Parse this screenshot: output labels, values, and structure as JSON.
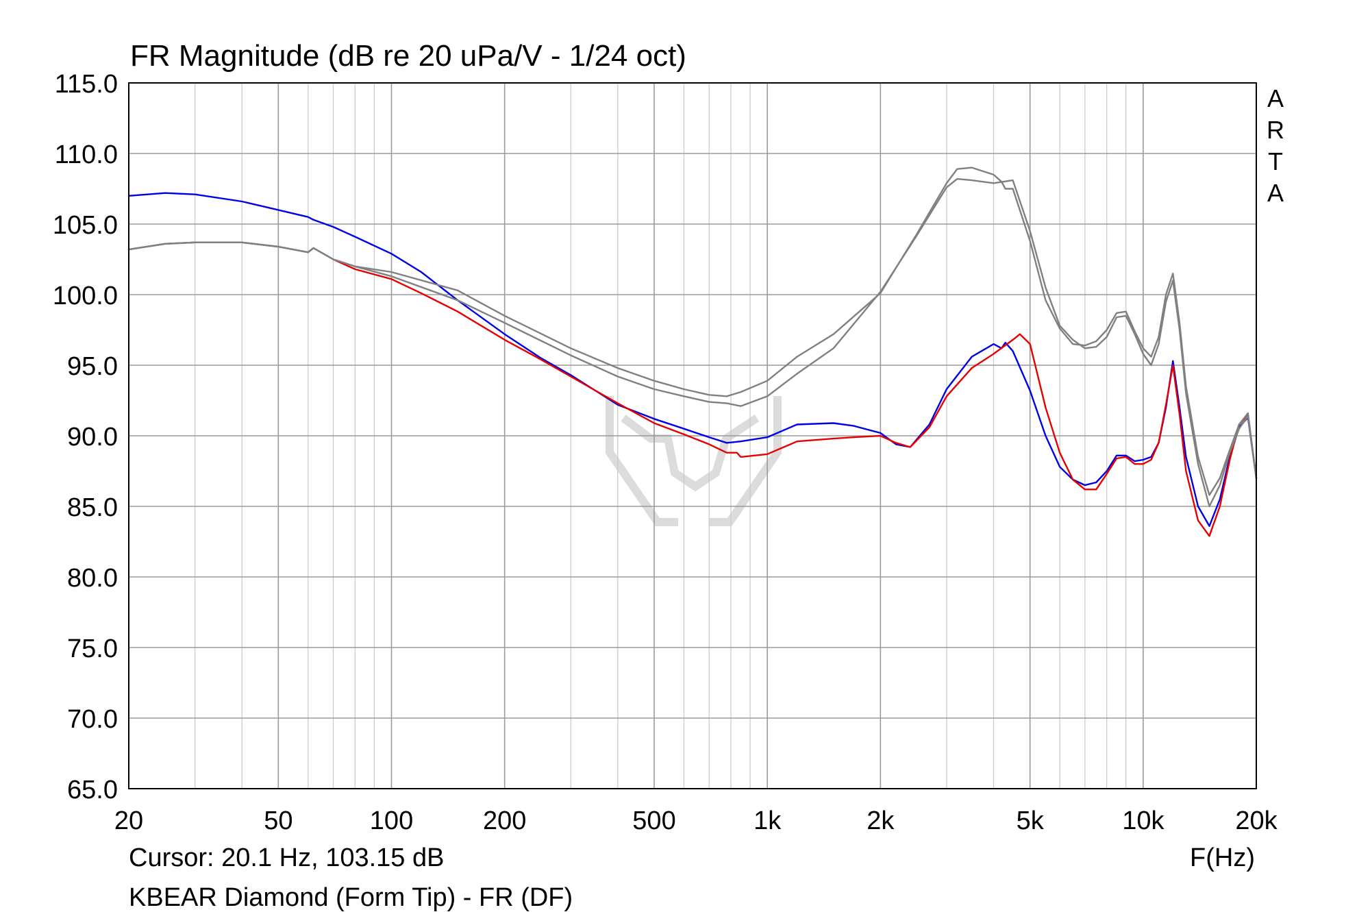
{
  "chart_data": {
    "type": "line",
    "title": "FR Magnitude (dB re 20 uPa/V - 1/24 oct)",
    "xlabel": "F(Hz)",
    "ylabel": "",
    "x_scale": "log",
    "xlim": [
      20,
      20000
    ],
    "ylim": [
      65,
      115
    ],
    "grid": true,
    "x_tick_values": [
      20,
      50,
      100,
      200,
      500,
      1000,
      2000,
      5000,
      10000,
      20000
    ],
    "x_tick_labels": [
      "20",
      "50",
      "100",
      "200",
      "500",
      "1k",
      "2k",
      "5k",
      "10k",
      "20k"
    ],
    "y_ticks": [
      "65.0",
      "70.0",
      "75.0",
      "80.0",
      "85.0",
      "90.0",
      "95.0",
      "100.0",
      "105.0",
      "110.0",
      "115.0"
    ],
    "brand_letters": [
      "A",
      "R",
      "T",
      "A"
    ],
    "cursor_text": "Cursor: 20.1 Hz, 103.15 dB",
    "caption": "KBEAR Diamond (Form Tip) - FR (DF)",
    "series": [
      {
        "color": "#0000e6",
        "x": [
          20,
          25,
          30,
          40,
          50,
          60,
          62,
          70,
          80,
          100,
          120,
          150,
          200,
          250,
          300,
          400,
          500,
          600,
          700,
          780,
          850,
          1000,
          1200,
          1500,
          1700,
          2000,
          2200,
          2400,
          2700,
          3000,
          3500,
          4000,
          4200,
          4300,
          4500,
          5000,
          5500,
          6000,
          6500,
          7000,
          7500,
          8000,
          8500,
          9000,
          9500,
          10000,
          10500,
          11000,
          11500,
          12000,
          12500,
          13000,
          14000,
          15000,
          16000,
          17000,
          18000,
          19000,
          20000
        ],
        "y": [
          107.0,
          107.2,
          107.1,
          106.6,
          106.0,
          105.5,
          105.3,
          104.8,
          104.1,
          102.9,
          101.6,
          99.6,
          97.2,
          95.5,
          94.3,
          92.2,
          91.2,
          90.5,
          89.9,
          89.5,
          89.6,
          89.9,
          90.8,
          90.9,
          90.7,
          90.2,
          89.4,
          89.2,
          90.8,
          93.3,
          95.6,
          96.5,
          96.2,
          96.6,
          96.0,
          93.2,
          90.0,
          87.8,
          86.9,
          86.5,
          86.7,
          87.5,
          88.6,
          88.6,
          88.2,
          88.3,
          88.5,
          89.5,
          92.0,
          95.3,
          92.0,
          88.5,
          85.0,
          83.6,
          85.5,
          88.5,
          90.6,
          91.3,
          87.0
        ]
      },
      {
        "color": "#e60000",
        "x": [
          20,
          25,
          30,
          40,
          50,
          60,
          62,
          70,
          80,
          100,
          120,
          150,
          200,
          250,
          300,
          400,
          500,
          600,
          700,
          780,
          830,
          850,
          1000,
          1200,
          1500,
          1700,
          2000,
          2200,
          2400,
          2700,
          3000,
          3500,
          4000,
          4500,
          4700,
          5000,
          5500,
          6000,
          6500,
          7000,
          7500,
          8000,
          8500,
          9000,
          9500,
          10000,
          10500,
          11000,
          11500,
          12000,
          12500,
          13000,
          14000,
          15000,
          16000,
          17000,
          18000,
          19000,
          20000
        ],
        "y": [
          103.2,
          103.6,
          103.7,
          103.7,
          103.4,
          103.0,
          103.3,
          102.5,
          101.8,
          101.1,
          100.1,
          98.8,
          96.8,
          95.4,
          94.2,
          92.3,
          90.9,
          90.1,
          89.4,
          88.8,
          88.8,
          88.5,
          88.7,
          89.6,
          89.8,
          89.9,
          90.0,
          89.5,
          89.2,
          90.6,
          92.8,
          94.8,
          95.8,
          96.8,
          97.2,
          96.5,
          92.0,
          88.8,
          86.9,
          86.2,
          86.2,
          87.3,
          88.4,
          88.5,
          88.0,
          88.0,
          88.3,
          89.5,
          92.2,
          95.0,
          91.5,
          87.5,
          84.0,
          82.9,
          85.0,
          88.3,
          90.8,
          91.5,
          87.0
        ]
      },
      {
        "color": "#808080",
        "x": [
          20,
          25,
          30,
          40,
          50,
          60,
          62,
          70,
          80,
          100,
          150,
          200,
          300,
          400,
          500,
          600,
          700,
          780,
          850,
          1000,
          1200,
          1500,
          2000,
          2500,
          3000,
          3200,
          3500,
          4000,
          4500,
          5000,
          5500,
          6000,
          6500,
          7000,
          7500,
          8000,
          8500,
          9000,
          9500,
          10000,
          10500,
          11000,
          11500,
          12000,
          12500,
          13000,
          14000,
          15000,
          16000,
          17000,
          18000,
          19000,
          20000
        ],
        "y": [
          103.2,
          103.6,
          103.7,
          103.7,
          103.4,
          103.0,
          103.3,
          102.5,
          102.0,
          101.3,
          99.6,
          98.0,
          95.7,
          94.2,
          93.3,
          92.8,
          92.4,
          92.3,
          92.1,
          92.8,
          94.4,
          96.2,
          100.2,
          104.2,
          107.6,
          108.2,
          108.1,
          107.9,
          108.1,
          104.5,
          100.5,
          97.8,
          96.8,
          96.2,
          96.3,
          97.0,
          98.4,
          98.5,
          97.2,
          95.8,
          95.0,
          96.5,
          99.5,
          101.0,
          97.5,
          93.0,
          88.0,
          85.0,
          86.5,
          88.8,
          90.5,
          91.4,
          87.0
        ]
      },
      {
        "color": "#808080",
        "x": [
          20,
          25,
          30,
          40,
          50,
          60,
          62,
          70,
          80,
          100,
          150,
          200,
          300,
          400,
          500,
          600,
          700,
          780,
          850,
          1000,
          1200,
          1500,
          2000,
          2500,
          3000,
          3200,
          3500,
          4000,
          4200,
          4300,
          4500,
          5000,
          5500,
          6000,
          6500,
          7000,
          7500,
          8000,
          8500,
          9000,
          9500,
          10000,
          10500,
          11000,
          11500,
          12000,
          12500,
          13000,
          14000,
          15000,
          16000,
          17000,
          18000,
          19000,
          20000
        ],
        "y": [
          103.2,
          103.6,
          103.7,
          103.7,
          103.4,
          103.0,
          103.3,
          102.5,
          102.0,
          101.6,
          100.3,
          98.5,
          96.2,
          94.8,
          93.9,
          93.3,
          92.9,
          92.8,
          93.1,
          93.9,
          95.6,
          97.2,
          100.1,
          104.3,
          107.9,
          108.9,
          109.0,
          108.5,
          108.0,
          107.5,
          107.5,
          103.8,
          99.6,
          97.6,
          96.5,
          96.4,
          96.7,
          97.5,
          98.7,
          98.8,
          97.4,
          96.2,
          95.6,
          97.0,
          100.0,
          101.5,
          98.0,
          93.5,
          88.5,
          85.8,
          87.0,
          89.0,
          90.8,
          91.6,
          87.0
        ]
      }
    ]
  }
}
